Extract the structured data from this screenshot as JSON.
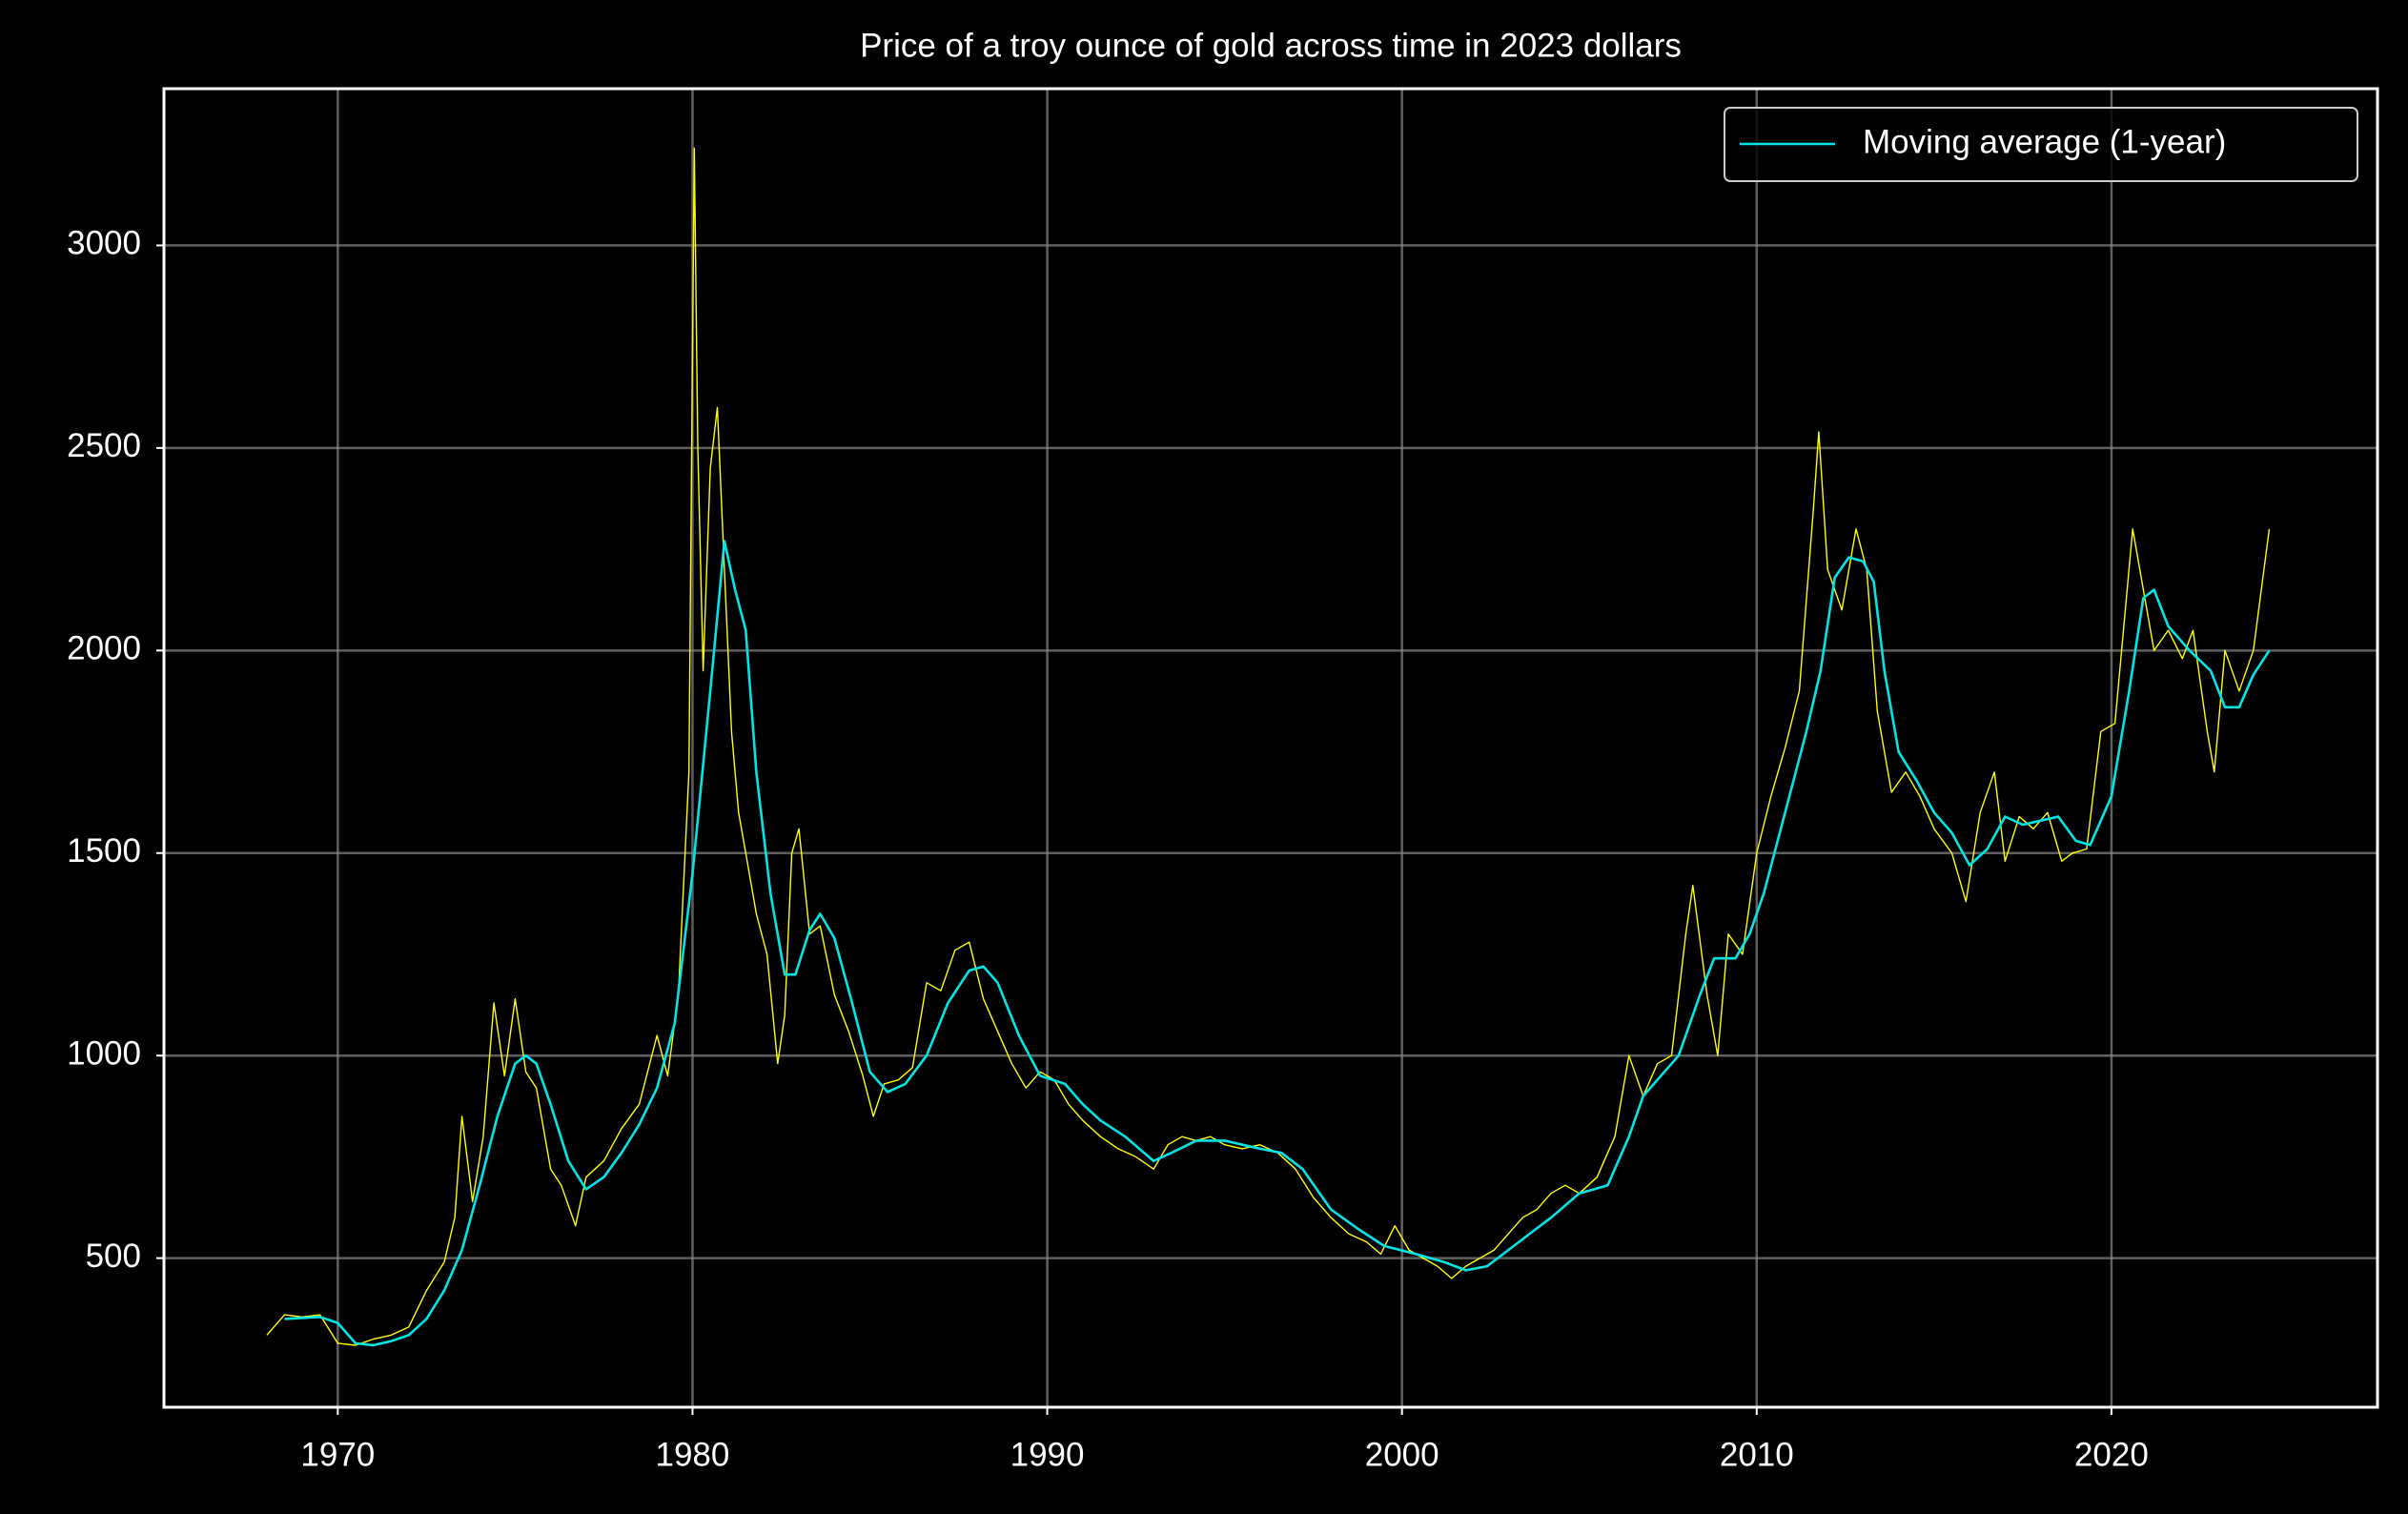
{
  "chart_data": {
    "type": "line",
    "title": "Price of a troy ounce of gold across time in 2023 dollars",
    "background": "#000000",
    "grid": true,
    "legend": "upper right",
    "xlim": [
      1965.1,
      2027.5
    ],
    "xticks": [
      1970,
      1980,
      1990,
      2000,
      2010,
      2020
    ],
    "ylim": [
      132,
      3387
    ],
    "yticks": [
      500,
      1000,
      1500,
      2000,
      2500,
      3000
    ],
    "series": [
      {
        "color": "#ffff00",
        "x": [
          1968.0,
          1968.5,
          1969,
          1969.5,
          1970,
          1970.5,
          1971,
          1971.5,
          1972,
          1972.5,
          1973,
          1973.3,
          1973.5,
          1973.8,
          1974.1,
          1974.4,
          1974.7,
          1975.0,
          1975.3,
          1975.6,
          1976,
          1976.3,
          1976.7,
          1977,
          1977.5,
          1978,
          1978.5,
          1979,
          1979.3,
          1979.6,
          1979.9,
          1980.05,
          1980.15,
          1980.3,
          1980.5,
          1980.7,
          1980.9,
          1981.1,
          1981.3,
          1981.5,
          1981.8,
          1982.1,
          1982.4,
          1982.6,
          1982.8,
          1983.0,
          1983.3,
          1983.6,
          1984,
          1984.4,
          1984.8,
          1985.1,
          1985.4,
          1985.8,
          1986.2,
          1986.6,
          1987,
          1987.4,
          1987.8,
          1988.2,
          1988.6,
          1989,
          1989.4,
          1989.8,
          1990.2,
          1990.6,
          1991,
          1991.5,
          1992,
          1992.5,
          1993,
          1993.4,
          1993.8,
          1994.2,
          1994.6,
          1995,
          1995.5,
          1996,
          1996.5,
          1997,
          1997.5,
          1998,
          1998.5,
          1999,
          1999.4,
          1999.8,
          2000.2,
          2000.6,
          2001,
          2001.4,
          2001.8,
          2002.2,
          2002.6,
          2003,
          2003.4,
          2003.8,
          2004.2,
          2004.6,
          2005,
          2005.5,
          2006,
          2006.4,
          2006.8,
          2007.2,
          2007.6,
          2008,
          2008.2,
          2008.6,
          2008.9,
          2009.2,
          2009.6,
          2010,
          2010.4,
          2010.8,
          2011.2,
          2011.6,
          2011.75,
          2012,
          2012.4,
          2012.8,
          2013.1,
          2013.4,
          2013.8,
          2014.2,
          2014.6,
          2015,
          2015.5,
          2015.9,
          2016.3,
          2016.7,
          2017,
          2017.4,
          2017.8,
          2018.2,
          2018.6,
          2018.9,
          2019.3,
          2019.7,
          2020.1,
          2020.6,
          2020.9,
          2021.2,
          2021.6,
          2022.0,
          2022.3,
          2022.7,
          2022.9,
          2023.2,
          2023.6,
          2024.0,
          2024.3,
          2024.45
        ],
        "values": [
          310,
          360,
          355,
          360,
          290,
          285,
          300,
          310,
          330,
          420,
          490,
          600,
          850,
          640,
          800,
          1130,
          950,
          1140,
          960,
          920,
          720,
          680,
          580,
          700,
          740,
          820,
          880,
          1050,
          950,
          1150,
          1700,
          3240,
          2500,
          1950,
          2450,
          2600,
          2200,
          1800,
          1600,
          1500,
          1350,
          1250,
          980,
          1100,
          1500,
          1560,
          1300,
          1320,
          1150,
          1060,
          950,
          850,
          930,
          940,
          970,
          1180,
          1160,
          1260,
          1280,
          1140,
          1060,
          980,
          920,
          960,
          940,
          880,
          840,
          800,
          770,
          750,
          720,
          780,
          800,
          790,
          800,
          780,
          770,
          780,
          760,
          720,
          650,
          600,
          560,
          540,
          510,
          580,
          520,
          500,
          480,
          450,
          480,
          500,
          520,
          560,
          600,
          620,
          660,
          680,
          660,
          700,
          800,
          1000,
          900,
          980,
          1000,
          1300,
          1420,
          1150,
          1000,
          1300,
          1250,
          1500,
          1640,
          1760,
          1900,
          2350,
          2540,
          2200,
          2100,
          2300,
          2200,
          1850,
          1650,
          1700,
          1640,
          1560,
          1500,
          1380,
          1600,
          1700,
          1480,
          1590,
          1560,
          1600,
          1480,
          1500,
          1510,
          1800,
          1820,
          2300,
          2150,
          2000,
          2050,
          1980,
          2050,
          1800,
          1700,
          2000,
          1900,
          2000,
          2200,
          2300
        ]
      },
      {
        "name": "Moving average (1-year)",
        "color": "#00e5e5",
        "x": [
          1968.5,
          1969.5,
          1970,
          1970.5,
          1971,
          1971.5,
          1972,
          1972.5,
          1973,
          1973.5,
          1974,
          1974.5,
          1975,
          1975.3,
          1975.6,
          1976,
          1976.5,
          1977,
          1977.5,
          1978,
          1978.5,
          1979,
          1979.5,
          1980,
          1980.5,
          1980.9,
          1981.2,
          1981.5,
          1981.8,
          1982.2,
          1982.6,
          1982.9,
          1983.3,
          1983.6,
          1984,
          1984.5,
          1985,
          1985.5,
          1986,
          1986.6,
          1987.2,
          1987.8,
          1988.2,
          1988.6,
          1989.2,
          1989.8,
          1990.5,
          1991,
          1991.5,
          1992.2,
          1993,
          1993.5,
          1994.2,
          1995,
          1996,
          1996.6,
          1997.2,
          1998,
          1998.8,
          1999.5,
          2000.4,
          2001.2,
          2001.8,
          2002.4,
          2003,
          2003.6,
          2004.2,
          2005,
          2005.8,
          2006.4,
          2006.8,
          2007.2,
          2007.8,
          2008.4,
          2008.8,
          2009.4,
          2009.8,
          2010.2,
          2010.8,
          2011.4,
          2011.8,
          2012.2,
          2012.6,
          2013,
          2013.3,
          2013.6,
          2014,
          2014.5,
          2015,
          2015.5,
          2016,
          2016.5,
          2017,
          2017.5,
          2018,
          2018.5,
          2019,
          2019.4,
          2020,
          2020.5,
          2020.9,
          2021.2,
          2021.6,
          2022.2,
          2022.8,
          2023.2,
          2023.6,
          2024.0,
          2024.45
        ],
        "values": [
          350,
          355,
          340,
          290,
          285,
          295,
          310,
          350,
          420,
          520,
          680,
          850,
          980,
          1000,
          980,
          880,
          740,
          670,
          700,
          760,
          830,
          920,
          1080,
          1450,
          1900,
          2270,
          2150,
          2050,
          1700,
          1400,
          1200,
          1200,
          1310,
          1350,
          1290,
          1130,
          960,
          910,
          930,
          1000,
          1130,
          1210,
          1220,
          1180,
          1050,
          950,
          930,
          880,
          840,
          800,
          740,
          760,
          790,
          790,
          770,
          760,
          720,
          620,
          570,
          530,
          510,
          490,
          470,
          480,
          520,
          560,
          600,
          660,
          680,
          800,
          900,
          940,
          1000,
          1150,
          1240,
          1240,
          1300,
          1400,
          1600,
          1800,
          1950,
          2180,
          2230,
          2220,
          2170,
          1950,
          1750,
          1680,
          1600,
          1550,
          1470,
          1510,
          1590,
          1570,
          1580,
          1590,
          1530,
          1520,
          1640,
          1900,
          2130,
          2150,
          2060,
          2000,
          1950,
          1860,
          1860,
          1940,
          2000
        ]
      }
    ]
  }
}
